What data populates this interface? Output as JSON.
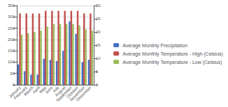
{
  "chart_data": {
    "type": "bar",
    "categories": [
      "January",
      "February",
      "March",
      "April",
      "May",
      "June",
      "July",
      "August",
      "September",
      "October",
      "November",
      "December"
    ],
    "series": [
      {
        "name": "Average Monthly Precipitation",
        "color": "#4472C4",
        "values": [
          90,
          60,
          45,
          45,
          115,
          110,
          105,
          150,
          280,
          225,
          100,
          110
        ]
      },
      {
        "name": "Average Monthly Temperature - High (Celsius)",
        "color": "#C0504D",
        "axis": "y2",
        "values": [
          27,
          27,
          27,
          27,
          28,
          28,
          28,
          28,
          28,
          28,
          27,
          27
        ]
      },
      {
        "name": "Average Monthly Temperature - Low (Celsius)",
        "color": "#9BBB59",
        "axis": "y2",
        "values": [
          19,
          19.5,
          20,
          20.5,
          22,
          23,
          23,
          23,
          23,
          22.5,
          21,
          20.5
        ]
      }
    ],
    "ylim": [
      0,
      350
    ],
    "yticks": [
      0,
      50,
      100,
      150,
      200,
      250,
      300,
      350
    ],
    "y2lim": [
      0,
      30
    ],
    "y2ticks": [
      0,
      5,
      10,
      15,
      20,
      25,
      30
    ],
    "grid": true,
    "legend": "right"
  }
}
